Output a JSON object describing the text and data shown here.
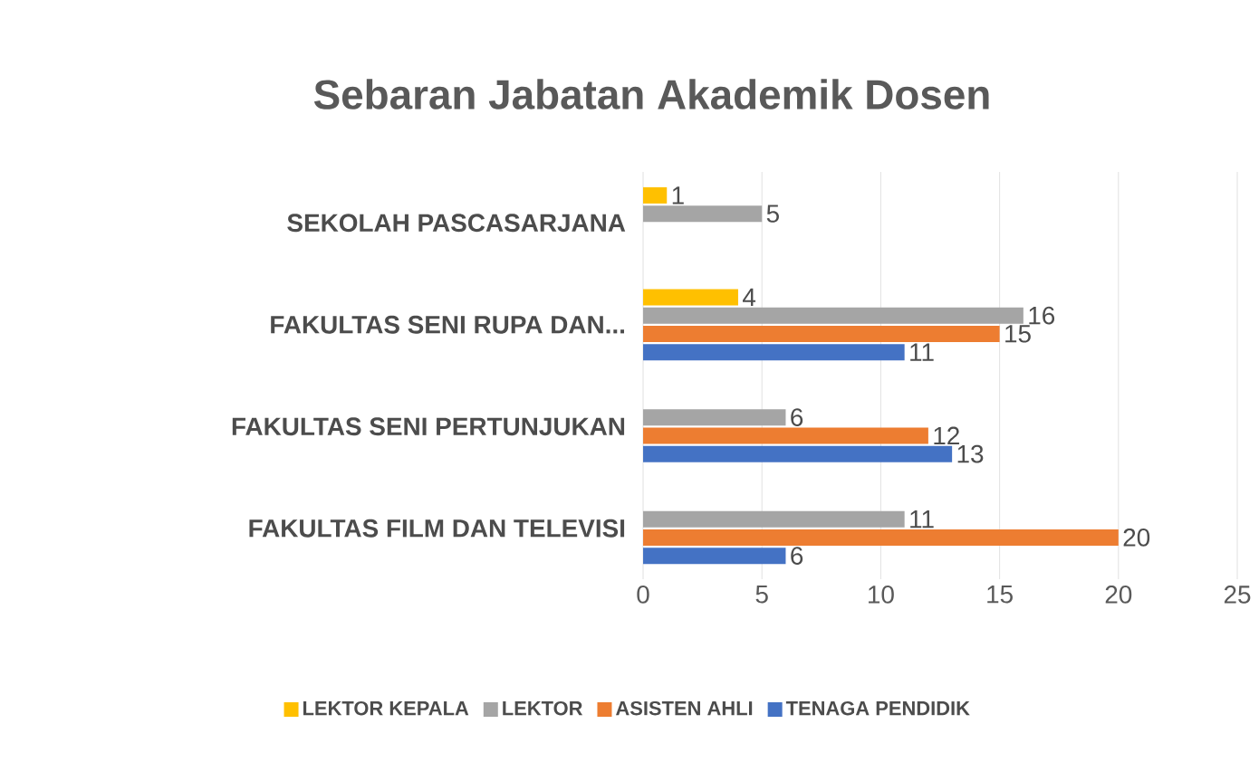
{
  "chart_data": {
    "type": "bar",
    "orientation": "horizontal",
    "title": "Sebaran Jabatan Akademik Dosen",
    "categories": [
      "SEKOLAH PASCASARJANA",
      "FAKULTAS SENI RUPA DAN...",
      "FAKULTAS SENI PERTUNJUKAN",
      "FAKULTAS FILM DAN TELEVISI"
    ],
    "series": [
      {
        "name": "LEKTOR KEPALA",
        "color": "#ffc000",
        "values": [
          1,
          4,
          null,
          null
        ]
      },
      {
        "name": "LEKTOR",
        "color": "#a5a5a5",
        "values": [
          5,
          16,
          6,
          11
        ]
      },
      {
        "name": "ASISTEN AHLI",
        "color": "#ed7d31",
        "values": [
          null,
          15,
          12,
          20
        ]
      },
      {
        "name": "TENAGA PENDIDIK",
        "color": "#4472c4",
        "values": [
          null,
          11,
          13,
          6
        ]
      }
    ],
    "xlim": [
      0,
      25
    ],
    "xticks": [
      0,
      5,
      10,
      15,
      20,
      25
    ],
    "grid": "x",
    "legend": "bottom",
    "data_labels": true
  }
}
